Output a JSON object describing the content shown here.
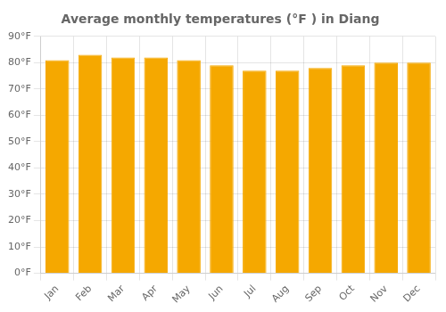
{
  "chart_data": {
    "type": "bar",
    "title": "Average monthly temperatures (°F ) in Diang",
    "categories": [
      "Jan",
      "Feb",
      "Mar",
      "Apr",
      "May",
      "Jun",
      "Jul",
      "Aug",
      "Sep",
      "Oct",
      "Nov",
      "Dec"
    ],
    "values": [
      81,
      83,
      82,
      82,
      81,
      79,
      77,
      77,
      78,
      79,
      80,
      80
    ],
    "color": "#F5A800",
    "ylim": [
      0,
      90
    ],
    "yticks": [
      {
        "value": 0,
        "label": "0°F"
      },
      {
        "value": 10,
        "label": "10°F"
      },
      {
        "value": 20,
        "label": "20°F"
      },
      {
        "value": 30,
        "label": "30°F"
      },
      {
        "value": 40,
        "label": "40°F"
      },
      {
        "value": 50,
        "label": "50°F"
      },
      {
        "value": 60,
        "label": "60°F"
      },
      {
        "value": 70,
        "label": "70°F"
      },
      {
        "value": 80,
        "label": "80°F"
      },
      {
        "value": 90,
        "label": "90°F"
      }
    ],
    "grid": true
  }
}
